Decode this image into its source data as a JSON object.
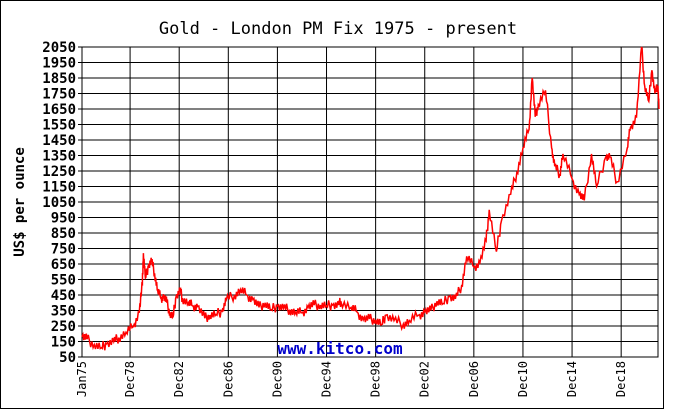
{
  "chart_data": {
    "type": "line",
    "title": "Gold - London PM Fix 1975 - present",
    "xlabel": "",
    "ylabel": "US$ per ounce",
    "watermark": "www.kitco.com",
    "ylim": [
      50,
      2050
    ],
    "y_ticks": [
      50,
      150,
      250,
      350,
      450,
      550,
      650,
      750,
      850,
      950,
      1050,
      1150,
      1250,
      1350,
      1450,
      1550,
      1650,
      1750,
      1850,
      1950,
      2050
    ],
    "x_range": [
      "1975-01",
      "2021-12"
    ],
    "x_ticks": [
      {
        "label": "Jan75",
        "date": "1975-01"
      },
      {
        "label": "Dec78",
        "date": "1978-12"
      },
      {
        "label": "Dec82",
        "date": "1982-12"
      },
      {
        "label": "Dec86",
        "date": "1986-12"
      },
      {
        "label": "Dec90",
        "date": "1990-12"
      },
      {
        "label": "Dec94",
        "date": "1994-12"
      },
      {
        "label": "Dec98",
        "date": "1998-12"
      },
      {
        "label": "Dec02",
        "date": "2002-12"
      },
      {
        "label": "Dec06",
        "date": "2006-12"
      },
      {
        "label": "Dec10",
        "date": "2010-12"
      },
      {
        "label": "Dec14",
        "date": "2014-12"
      },
      {
        "label": "Dec18",
        "date": "2018-12"
      }
    ],
    "grid": true,
    "line_color": "#ff0000",
    "series": [
      {
        "name": "",
        "points": [
          [
            "1975-01",
            180
          ],
          [
            "1975-06",
            165
          ],
          [
            "1976-01",
            130
          ],
          [
            "1976-08",
            110
          ],
          [
            "1977-01",
            135
          ],
          [
            "1977-08",
            150
          ],
          [
            "1978-01",
            175
          ],
          [
            "1978-08",
            210
          ],
          [
            "1979-03",
            245
          ],
          [
            "1979-09",
            340
          ],
          [
            "1979-12",
            520
          ],
          [
            "1980-01",
            720
          ],
          [
            "1980-03",
            560
          ],
          [
            "1980-06",
            640
          ],
          [
            "1980-09",
            670
          ],
          [
            "1980-12",
            590
          ],
          [
            "1981-03",
            480
          ],
          [
            "1981-06",
            430
          ],
          [
            "1981-09",
            440
          ],
          [
            "1981-12",
            400
          ],
          [
            "1982-03",
            330
          ],
          [
            "1982-06",
            310
          ],
          [
            "1982-09",
            440
          ],
          [
            "1983-01",
            480
          ],
          [
            "1983-03",
            430
          ],
          [
            "1983-09",
            400
          ],
          [
            "1984-01",
            380
          ],
          [
            "1984-06",
            375
          ],
          [
            "1985-01",
            300
          ],
          [
            "1985-06",
            320
          ],
          [
            "1985-12",
            325
          ],
          [
            "1986-06",
            345
          ],
          [
            "1986-10",
            420
          ],
          [
            "1987-06",
            450
          ],
          [
            "1987-12",
            485
          ],
          [
            "1988-06",
            450
          ],
          [
            "1988-12",
            420
          ],
          [
            "1989-06",
            370
          ],
          [
            "1989-12",
            400
          ],
          [
            "1990-06",
            355
          ],
          [
            "1990-12",
            380
          ],
          [
            "1991-06",
            365
          ],
          [
            "1991-12",
            355
          ],
          [
            "1992-06",
            340
          ],
          [
            "1992-12",
            335
          ],
          [
            "1993-06",
            370
          ],
          [
            "1993-12",
            385
          ],
          [
            "1994-06",
            385
          ],
          [
            "1994-12",
            380
          ],
          [
            "1995-06",
            385
          ],
          [
            "1995-12",
            385
          ],
          [
            "1996-02",
            410
          ],
          [
            "1996-12",
            370
          ],
          [
            "1997-06",
            340
          ],
          [
            "1997-12",
            290
          ],
          [
            "1998-06",
            295
          ],
          [
            "1998-12",
            290
          ],
          [
            "1999-06",
            260
          ],
          [
            "1999-10",
            320
          ],
          [
            "2000-06",
            285
          ],
          [
            "2001-03",
            262
          ],
          [
            "2001-09",
            285
          ],
          [
            "2002-06",
            320
          ],
          [
            "2002-12",
            340
          ],
          [
            "2003-06",
            350
          ],
          [
            "2003-12",
            410
          ],
          [
            "2004-06",
            395
          ],
          [
            "2004-12",
            440
          ],
          [
            "2005-06",
            425
          ],
          [
            "2005-12",
            510
          ],
          [
            "2006-05",
            700
          ],
          [
            "2006-12",
            630
          ],
          [
            "2007-06",
            660
          ],
          [
            "2007-12",
            800
          ],
          [
            "2008-03",
            1000
          ],
          [
            "2008-10",
            730
          ],
          [
            "2009-03",
            930
          ],
          [
            "2009-12",
            1100
          ],
          [
            "2010-06",
            1240
          ],
          [
            "2010-12",
            1400
          ],
          [
            "2011-06",
            1520
          ],
          [
            "2011-09",
            1850
          ],
          [
            "2011-12",
            1600
          ],
          [
            "2012-03",
            1680
          ],
          [
            "2012-10",
            1770
          ],
          [
            "2013-04",
            1400
          ],
          [
            "2013-07",
            1280
          ],
          [
            "2013-12",
            1230
          ],
          [
            "2014-03",
            1360
          ],
          [
            "2014-12",
            1200
          ],
          [
            "2015-07",
            1100
          ],
          [
            "2015-12",
            1060
          ],
          [
            "2016-07",
            1360
          ],
          [
            "2016-12",
            1150
          ],
          [
            "2017-09",
            1340
          ],
          [
            "2018-01",
            1340
          ],
          [
            "2018-08",
            1180
          ],
          [
            "2019-06",
            1400
          ],
          [
            "2019-09",
            1530
          ],
          [
            "2020-03",
            1600
          ],
          [
            "2020-08",
            2050
          ],
          [
            "2020-11",
            1800
          ],
          [
            "2021-03",
            1700
          ],
          [
            "2021-06",
            1900
          ],
          [
            "2021-09",
            1750
          ],
          [
            "2021-12",
            1800
          ],
          [
            "2022-01",
            1650
          ]
        ]
      }
    ]
  }
}
